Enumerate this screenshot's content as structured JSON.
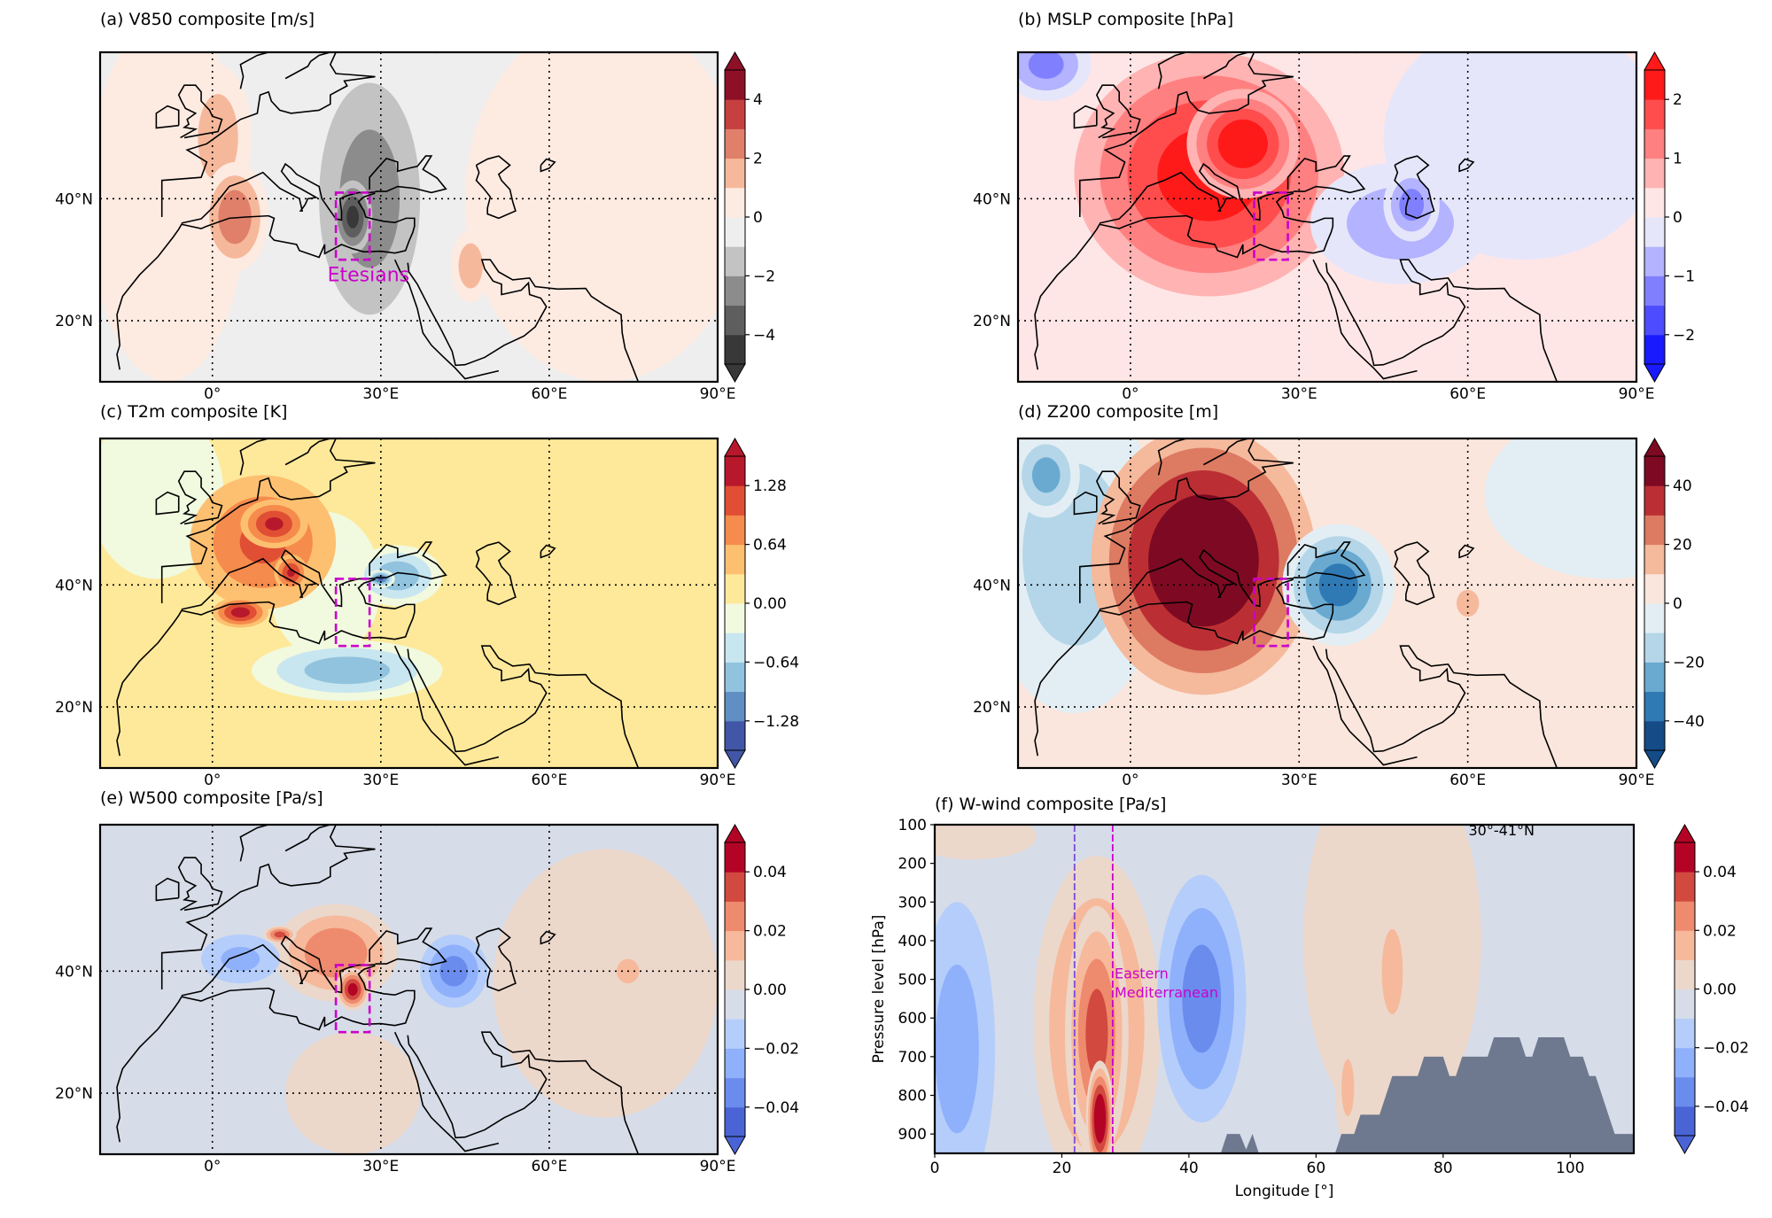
{
  "chart_data": [
    {
      "type": "heatmap",
      "id": "a",
      "kind": "map",
      "title": "(a) V850 composite [m/s]",
      "lon_range": [
        -20,
        90
      ],
      "lat_range": [
        10,
        64
      ],
      "xticks": [
        {
          "value": 0,
          "label": "0°"
        },
        {
          "value": 30,
          "label": "30°E"
        },
        {
          "value": 60,
          "label": "60°E"
        },
        {
          "value": 90,
          "label": "90°E"
        }
      ],
      "yticks": [
        {
          "value": 40,
          "label": "40°N"
        },
        {
          "value": 20,
          "label": "20°N"
        }
      ],
      "grid": "dotted",
      "colorbar": {
        "min": -5,
        "step": 1,
        "extend": "both",
        "colors": [
          "#383838",
          "#5e5e5e",
          "#8c8c8c",
          "#c3c3c3",
          "#eeeeee",
          "#fdebe2",
          "#f6b89b",
          "#e0806a",
          "#c5403f",
          "#8e1027"
        ],
        "ticks": [
          {
            "value": 4,
            "label": "4"
          },
          {
            "value": 2,
            "label": "2"
          },
          {
            "value": 0,
            "label": "0"
          },
          {
            "value": -2,
            "label": "−2"
          },
          {
            "value": -4,
            "label": "−4"
          }
        ]
      },
      "background_value": -0.5,
      "anomalies": [
        {
          "lon": -8,
          "lat": 40,
          "rx": 14,
          "ry": 30,
          "value": 0.6
        },
        {
          "lon": 70,
          "lat": 40,
          "rx": 25,
          "ry": 30,
          "value": 0.6
        },
        {
          "lon": 1,
          "lat": 50,
          "rx": 6,
          "ry": 12,
          "value": 1.6
        },
        {
          "lon": 4,
          "lat": 37,
          "rx": 6,
          "ry": 9,
          "value": 2.9
        },
        {
          "lon": 46,
          "lat": 29,
          "rx": 3.5,
          "ry": 6,
          "value": 1.7
        },
        {
          "lon": 28,
          "lat": 40,
          "rx": 9,
          "ry": 19,
          "value": -2.6
        },
        {
          "lon": 25,
          "lat": 37,
          "rx": 3.5,
          "ry": 6,
          "value": -4.4
        }
      ],
      "box": {
        "lon": [
          22,
          28
        ],
        "lat": [
          30,
          41
        ],
        "color": "#cc00cc"
      },
      "annotations": [
        {
          "text": "Etesians",
          "lon": 20.5,
          "lat": 26.5,
          "color": "#cc00cc"
        }
      ]
    },
    {
      "type": "heatmap",
      "id": "b",
      "kind": "map",
      "title": "(b) MSLP composite [hPa]",
      "lon_range": [
        -20,
        90
      ],
      "lat_range": [
        10,
        64
      ],
      "xticks": [
        {
          "value": 0,
          "label": "0°"
        },
        {
          "value": 30,
          "label": "30°E"
        },
        {
          "value": 60,
          "label": "60°E"
        },
        {
          "value": 90,
          "label": "90°E"
        }
      ],
      "yticks": [
        {
          "value": 40,
          "label": "40°N"
        },
        {
          "value": 20,
          "label": "20°N"
        }
      ],
      "grid": "dotted",
      "colorbar": {
        "min": -2.5,
        "step": 0.5,
        "extend": "both",
        "colors": [
          "#1a1aff",
          "#4d4dff",
          "#8080ff",
          "#b3b3ff",
          "#e6e6fb",
          "#ffe6e6",
          "#ffb3b3",
          "#ff8080",
          "#ff4d4d",
          "#ff1a1a"
        ],
        "ticks": [
          {
            "value": 2,
            "label": "2"
          },
          {
            "value": 1,
            "label": "1"
          },
          {
            "value": 0,
            "label": "0"
          },
          {
            "value": -1,
            "label": "−1"
          },
          {
            "value": -2,
            "label": "−2"
          }
        ]
      },
      "background_value": 0.25,
      "anomalies": [
        {
          "lon": 70,
          "lat": 50,
          "rx": 25,
          "ry": 20,
          "value": -0.3
        },
        {
          "lon": -15,
          "lat": 62,
          "rx": 8,
          "ry": 6,
          "value": -1.2
        },
        {
          "lon": 14,
          "lat": 44,
          "rx": 24,
          "ry": 20,
          "value": 2.4
        },
        {
          "lon": 20,
          "lat": 49,
          "rx": 10,
          "ry": 9,
          "value": 2.6
        },
        {
          "lon": 48,
          "lat": 36,
          "rx": 16,
          "ry": 10,
          "value": -0.8
        },
        {
          "lon": 50,
          "lat": 39,
          "rx": 5,
          "ry": 6,
          "value": -1.3
        }
      ],
      "box": {
        "lon": [
          22,
          28
        ],
        "lat": [
          30,
          41
        ],
        "color": "#cc00cc"
      },
      "annotations": []
    },
    {
      "type": "heatmap",
      "id": "c",
      "kind": "map",
      "title": "(c) T2m composite [K]",
      "lon_range": [
        -20,
        90
      ],
      "lat_range": [
        10,
        64
      ],
      "xticks": [
        {
          "value": 0,
          "label": "0°"
        },
        {
          "value": 30,
          "label": "30°E"
        },
        {
          "value": 60,
          "label": "60°E"
        },
        {
          "value": 90,
          "label": "90°E"
        }
      ],
      "yticks": [
        {
          "value": 40,
          "label": "40°N"
        },
        {
          "value": 20,
          "label": "20°N"
        }
      ],
      "grid": "dotted",
      "colorbar": {
        "min": -1.6,
        "step": 0.32,
        "extend": "both",
        "colors": [
          "#4156a6",
          "#5f8fc3",
          "#91c3de",
          "#c8e6f0",
          "#f1f9df",
          "#fee99a",
          "#fdc070",
          "#f58b4c",
          "#e04f33",
          "#b8182b"
        ],
        "ticks": [
          {
            "value": 1.28,
            "label": "1.28"
          },
          {
            "value": 0.64,
            "label": "0.64"
          },
          {
            "value": 0,
            "label": "0.00"
          },
          {
            "value": -0.64,
            "label": "−0.64"
          },
          {
            "value": -1.28,
            "label": "−1.28"
          }
        ]
      },
      "background_value": 0.16,
      "anomalies": [
        {
          "lon": -10,
          "lat": 55,
          "rx": 12,
          "ry": 14,
          "value": -0.1
        },
        {
          "lon": 20,
          "lat": 40,
          "rx": 10,
          "ry": 12,
          "value": -0.15
        },
        {
          "lon": 9,
          "lat": 47,
          "rx": 13,
          "ry": 11,
          "value": 1.0
        },
        {
          "lon": 11,
          "lat": 50,
          "rx": 6,
          "ry": 4,
          "value": 1.35
        },
        {
          "lon": 5,
          "lat": 35.5,
          "rx": 5,
          "ry": 2.5,
          "value": 1.45
        },
        {
          "lon": 14,
          "lat": 42,
          "rx": 3,
          "ry": 3,
          "value": 1.3
        },
        {
          "lon": 33,
          "lat": 41.5,
          "rx": 8,
          "ry": 5,
          "value": -0.9
        },
        {
          "lon": 30,
          "lat": 41,
          "rx": 2.5,
          "ry": 1.5,
          "value": -1.3
        },
        {
          "lon": 24,
          "lat": 26,
          "rx": 17,
          "ry": 5,
          "value": -0.85
        }
      ],
      "box": {
        "lon": [
          22,
          28
        ],
        "lat": [
          30,
          41
        ],
        "color": "#cc00cc"
      },
      "annotations": []
    },
    {
      "type": "heatmap",
      "id": "d",
      "kind": "map",
      "title": "(d) Z200 composite [m]",
      "lon_range": [
        -20,
        90
      ],
      "lat_range": [
        10,
        64
      ],
      "xticks": [
        {
          "value": 0,
          "label": "0°"
        },
        {
          "value": 30,
          "label": "30°E"
        },
        {
          "value": 60,
          "label": "60°E"
        },
        {
          "value": 90,
          "label": "90°E"
        }
      ],
      "yticks": [
        {
          "value": 40,
          "label": "40°N"
        },
        {
          "value": 20,
          "label": "20°N"
        }
      ],
      "grid": "dotted",
      "colorbar": {
        "min": -50,
        "step": 10,
        "extend": "both",
        "colors": [
          "#154b87",
          "#2f79b5",
          "#6aaad1",
          "#b4d6e8",
          "#e3eef4",
          "#fae6dc",
          "#f5b99c",
          "#dd7a62",
          "#bb2f34",
          "#7d0a22"
        ],
        "ticks": [
          {
            "value": 40,
            "label": "40"
          },
          {
            "value": 20,
            "label": "20"
          },
          {
            "value": 0,
            "label": "0"
          },
          {
            "value": -20,
            "label": "−20"
          },
          {
            "value": -40,
            "label": "−40"
          }
        ]
      },
      "background_value": 5,
      "anomalies": [
        {
          "lon": -10,
          "lat": 45,
          "rx": 16,
          "ry": 26,
          "value": -15
        },
        {
          "lon": -15,
          "lat": 58,
          "rx": 6,
          "ry": 7,
          "value": -25
        },
        {
          "lon": 85,
          "lat": 55,
          "rx": 22,
          "ry": 14,
          "value": -5
        },
        {
          "lon": 13,
          "lat": 44,
          "rx": 20,
          "ry": 22,
          "value": 56
        },
        {
          "lon": 37,
          "lat": 40,
          "rx": 10,
          "ry": 10,
          "value": -36
        },
        {
          "lon": 60,
          "lat": 37,
          "rx": 2,
          "ry": 2.2,
          "value": 14
        }
      ],
      "box": {
        "lon": [
          22,
          28
        ],
        "lat": [
          30,
          41
        ],
        "color": "#cc00cc"
      },
      "annotations": []
    },
    {
      "type": "heatmap",
      "id": "e",
      "kind": "map",
      "title": "(e) W500 composite [Pa/s]",
      "lon_range": [
        -20,
        90
      ],
      "lat_range": [
        10,
        64
      ],
      "xticks": [
        {
          "value": 0,
          "label": "0°"
        },
        {
          "value": 30,
          "label": "30°E"
        },
        {
          "value": 60,
          "label": "60°E"
        },
        {
          "value": 90,
          "label": "90°E"
        }
      ],
      "yticks": [
        {
          "value": 40,
          "label": "40°N"
        },
        {
          "value": 20,
          "label": "20°N"
        }
      ],
      "grid": "dotted",
      "colorbar": {
        "min": -0.05,
        "step": 0.01,
        "extend": "both",
        "colors": [
          "#4a64d6",
          "#6a8ced",
          "#8fb0fb",
          "#b5cdfa",
          "#d6dce8",
          "#ecd7cb",
          "#f6b99b",
          "#ee8a6d",
          "#d1493f",
          "#b40426"
        ],
        "ticks": [
          {
            "value": 0.04,
            "label": "0.04"
          },
          {
            "value": 0.02,
            "label": "0.02"
          },
          {
            "value": 0,
            "label": "0.00"
          },
          {
            "value": -0.02,
            "label": "−0.02"
          },
          {
            "value": -0.04,
            "label": "−0.04"
          }
        ]
      },
      "background_value": -0.005,
      "anomalies": [
        {
          "lon": 70,
          "lat": 38,
          "rx": 20,
          "ry": 22,
          "value": 0.008
        },
        {
          "lon": 25,
          "lat": 20,
          "rx": 12,
          "ry": 10,
          "value": 0.006
        },
        {
          "lon": 22,
          "lat": 43,
          "rx": 11,
          "ry": 8,
          "value": 0.03
        },
        {
          "lon": 25,
          "lat": 37,
          "rx": 3,
          "ry": 3.5,
          "value": 0.046
        },
        {
          "lon": 12,
          "lat": 46,
          "rx": 3,
          "ry": 1.5,
          "value": 0.035
        },
        {
          "lon": 43,
          "lat": 40,
          "rx": 6,
          "ry": 6,
          "value": -0.035
        },
        {
          "lon": 5,
          "lat": 42,
          "rx": 7,
          "ry": 4,
          "value": -0.022
        },
        {
          "lon": 74,
          "lat": 40,
          "rx": 3,
          "ry": 3,
          "value": 0.02
        }
      ],
      "box": {
        "lon": [
          22,
          28
        ],
        "lat": [
          30,
          41
        ],
        "color": "#cc00cc"
      },
      "annotations": []
    },
    {
      "type": "heatmap",
      "id": "f",
      "kind": "section",
      "title": "(f) W-wind composite [Pa/s]",
      "xlabel": "Longitude [°]",
      "ylabel": "Pressure level [hPa]",
      "xlim": [
        0,
        110
      ],
      "ylim": [
        950,
        100
      ],
      "y_inverted": true,
      "xticks": [
        {
          "value": 0,
          "label": "0"
        },
        {
          "value": 20,
          "label": "20"
        },
        {
          "value": 40,
          "label": "40"
        },
        {
          "value": 60,
          "label": "60"
        },
        {
          "value": 80,
          "label": "80"
        },
        {
          "value": 100,
          "label": "100"
        }
      ],
      "yticks": [
        {
          "value": 100,
          "label": "100"
        },
        {
          "value": 200,
          "label": "200"
        },
        {
          "value": 300,
          "label": "300"
        },
        {
          "value": 400,
          "label": "400"
        },
        {
          "value": 500,
          "label": "500"
        },
        {
          "value": 600,
          "label": "600"
        },
        {
          "value": 700,
          "label": "700"
        },
        {
          "value": 800,
          "label": "800"
        },
        {
          "value": 900,
          "label": "900"
        }
      ],
      "colorbar": {
        "min": -0.05,
        "step": 0.01,
        "extend": "both",
        "colors": [
          "#4a64d6",
          "#6a8ced",
          "#8fb0fb",
          "#b5cdfa",
          "#d6dce8",
          "#ecd7cb",
          "#f6b99b",
          "#ee8a6d",
          "#d1493f",
          "#b40426"
        ],
        "ticks": [
          {
            "value": 0.04,
            "label": "0.04"
          },
          {
            "value": 0.02,
            "label": "0.02"
          },
          {
            "value": 0,
            "label": "0.00"
          },
          {
            "value": -0.02,
            "label": "−0.02"
          },
          {
            "value": -0.04,
            "label": "−0.04"
          }
        ]
      },
      "background_value": -0.005,
      "anomalies": [
        {
          "lon": 6,
          "lat": 130,
          "rx": 10,
          "ry": 60,
          "value": 0.005
        },
        {
          "lon": 72,
          "lat": 400,
          "rx": 14,
          "ry": 500,
          "value": 0.006
        },
        {
          "lon": 72,
          "lat": 480,
          "rx": 3,
          "ry": 200,
          "value": 0.014
        },
        {
          "lon": 25.5,
          "lat": 620,
          "rx": 10,
          "ry": 440,
          "value": 0.028
        },
        {
          "lon": 25.5,
          "lat": 640,
          "rx": 5,
          "ry": 330,
          "value": 0.036
        },
        {
          "lon": 26,
          "lat": 860,
          "rx": 2.2,
          "ry": 150,
          "value": 0.056
        },
        {
          "lon": 42,
          "lat": 550,
          "rx": 7,
          "ry": 320,
          "value": -0.036
        },
        {
          "lon": 3.5,
          "lat": 680,
          "rx": 6,
          "ry": 380,
          "value": -0.025
        },
        {
          "lon": 65,
          "lat": 780,
          "rx": 2,
          "ry": 150,
          "value": 0.012
        }
      ],
      "topography": {
        "color": "#6e788e",
        "points": [
          [
            45,
            950
          ],
          [
            46,
            900
          ],
          [
            48,
            900
          ],
          [
            49,
            940
          ],
          [
            50,
            900
          ],
          [
            51,
            950
          ],
          [
            63,
            950
          ],
          [
            64,
            900
          ],
          [
            66,
            900
          ],
          [
            67,
            850
          ],
          [
            70,
            850
          ],
          [
            71,
            800
          ],
          [
            72,
            750
          ],
          [
            76,
            750
          ],
          [
            77,
            700
          ],
          [
            80,
            700
          ],
          [
            81,
            750
          ],
          [
            82,
            750
          ],
          [
            83,
            700
          ],
          [
            87,
            700
          ],
          [
            88,
            650
          ],
          [
            92,
            650
          ],
          [
            93,
            700
          ],
          [
            94,
            700
          ],
          [
            95,
            650
          ],
          [
            99,
            650
          ],
          [
            100,
            700
          ],
          [
            102,
            700
          ],
          [
            103,
            750
          ],
          [
            104,
            750
          ],
          [
            107,
            900
          ],
          [
            110,
            900
          ],
          [
            110,
            950
          ]
        ]
      },
      "vlines": [
        {
          "lon": 22,
          "color": "#7a4ad8"
        },
        {
          "lon": 28,
          "color": "#cc00cc"
        }
      ],
      "annotations": [
        {
          "text": "30°-41°N",
          "lon": 84,
          "lat": 128,
          "color": "#000000"
        },
        {
          "text": "Eastern",
          "lon": 28.3,
          "lat": 497,
          "color": "#cc00cc"
        },
        {
          "text": "Mediterranean",
          "lon": 28.3,
          "lat": 547,
          "color": "#cc00cc"
        }
      ]
    }
  ]
}
